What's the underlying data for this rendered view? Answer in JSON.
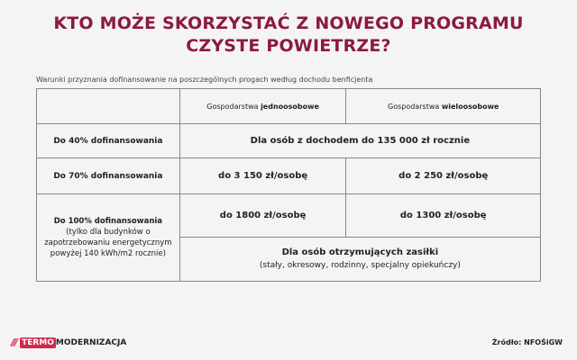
{
  "title_line1": "KTO MOŻE SKORZYSTAĆ Z NOWEGO PROGRAMU",
  "title_line2": "CZYSTE POWIETRZE?",
  "subtitle": "Warunki przyznania dofinansowanie na poszczególnych progach według dochodu benficjenta",
  "table": {
    "headers": [
      {
        "prefix": "Gospodarstwa ",
        "bold": "jednoosobowe"
      },
      {
        "prefix": "Gospodarstwa ",
        "bold": "wieloosobowe"
      }
    ],
    "row1": {
      "label": "Do 40% dofinansowania",
      "value": "Dla osób z dochodem do 135 000 zł rocznie"
    },
    "row2": {
      "label": "Do 70% dofinansowania",
      "single": "do 3 150 zł/osobę",
      "multi": "do 2 250 zł/osobę"
    },
    "row3": {
      "label": "Do 100% dofinansowania",
      "note": "(tylko dla budynków o zapotrzebowaniu energetycznym powyżej 140 kWh/m2 rocznie)",
      "single": "do 1800 zł/osobę",
      "multi": "do 1300 zł/osobę",
      "benefit": "Dla osób otrzymujących zasiłki",
      "benefit_note": "(stały, okresowy, rodzinny, specjalny opiekuńczy)"
    }
  },
  "logo": {
    "part1": "TERMO",
    "part2": "MODERNIZACJA"
  },
  "source": "Źródło: NFOŚiGW",
  "colors": {
    "title": "#8c1a3e",
    "brand": "#d12a4a"
  }
}
